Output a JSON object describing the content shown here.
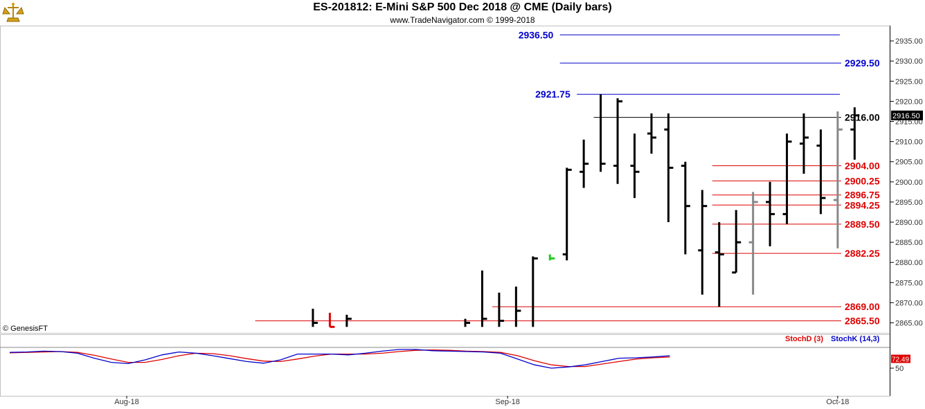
{
  "header": {
    "title": "ES-201812:  E-Mini S&P 500 Dec 2018 @ CME  (Daily bars)",
    "subtitle": "www.TradeNavigator.com © 1999-2018"
  },
  "colors": {
    "bar": "#000000",
    "bar_gray": "#888888",
    "bar_green": "#22cc22",
    "bar_red": "#e00000",
    "level_blue": "#0000cc",
    "level_red": "#dd0000",
    "level_black": "#000000",
    "stoch_d": "#dd0000",
    "stoch_k": "#0000cc"
  },
  "chart_data": {
    "type": "bar",
    "subtype": "ohlc",
    "y_axis": {
      "range": [
        2861,
        2939
      ],
      "ticks": [
        2865.0,
        2870.0,
        2875.0,
        2880.0,
        2885.0,
        2890.0,
        2895.0,
        2900.0,
        2905.0,
        2910.0,
        2915.0,
        2920.0,
        2925.0,
        2930.0,
        2935.0
      ],
      "current_price_label": "2916.50"
    },
    "x_axis": {
      "labels": [
        {
          "text": "Aug-18",
          "bar": 0
        },
        {
          "text": "Sep-18",
          "bar": 22.5
        },
        {
          "text": "Oct-18",
          "bar": 42
        }
      ]
    },
    "bars": [
      {
        "i": 11,
        "h": 2868.5,
        "l": 2864,
        "c": 2865,
        "color": "black"
      },
      {
        "i": 12,
        "h": 2867.5,
        "l": 2864,
        "c": 2864,
        "color": "red"
      },
      {
        "i": 13,
        "h": 2867,
        "l": 2864,
        "c": 2866,
        "color": "black"
      },
      {
        "i": 20,
        "h": 2866,
        "l": 2864,
        "c": 2865,
        "color": "black"
      },
      {
        "i": 21,
        "h": 2878,
        "l": 2864,
        "c": 2866,
        "color": "black"
      },
      {
        "i": 22,
        "h": 2872.5,
        "l": 2864,
        "c": 2865.5,
        "color": "black"
      },
      {
        "i": 23,
        "h": 2874,
        "l": 2864,
        "c": 2868,
        "color": "black"
      },
      {
        "i": 24,
        "h": 2881.5,
        "l": 2864,
        "c": 2881,
        "color": "black"
      },
      {
        "i": 25,
        "h": 2882,
        "l": 2880.5,
        "c": 2881,
        "color": "green"
      },
      {
        "i": 26,
        "h": 2903.5,
        "l": 2880.5,
        "c": 2903,
        "o": 2882,
        "color": "black"
      },
      {
        "i": 27,
        "h": 2910.5,
        "l": 2898.5,
        "c": 2904.5,
        "o": 2902.5,
        "color": "black"
      },
      {
        "i": 28,
        "h": 2921.75,
        "l": 2902.5,
        "c": 2904.5,
        "color": "black"
      },
      {
        "i": 29,
        "h": 2920.75,
        "l": 2899.5,
        "c": 2920,
        "o": 2904,
        "color": "black"
      },
      {
        "i": 30,
        "h": 2912,
        "l": 2896,
        "c": 2902.5,
        "o": 2904,
        "color": "black"
      },
      {
        "i": 31,
        "h": 2917,
        "l": 2907,
        "c": 2911,
        "o": 2912,
        "color": "black"
      },
      {
        "i": 32,
        "h": 2917,
        "l": 2890,
        "c": 2903.5,
        "o": 2913,
        "color": "black"
      },
      {
        "i": 33,
        "h": 2905,
        "l": 2882,
        "c": 2894,
        "o": 2904,
        "color": "black"
      },
      {
        "i": 34,
        "h": 2898,
        "l": 2872,
        "c": 2894,
        "o": 2883,
        "color": "black"
      },
      {
        "i": 35,
        "h": 2890,
        "l": 2869,
        "c": 2882,
        "o": 2882.5,
        "color": "black"
      },
      {
        "i": 36,
        "h": 2893,
        "l": 2877.5,
        "c": 2885,
        "o": 2877.5,
        "color": "black"
      },
      {
        "i": 37,
        "h": 2897.5,
        "l": 2872,
        "c": 2895,
        "o": 2885,
        "color": "gray"
      },
      {
        "i": 38,
        "h": 2900,
        "l": 2884,
        "c": 2892,
        "o": 2895,
        "color": "black"
      },
      {
        "i": 39,
        "h": 2912,
        "l": 2889.5,
        "c": 2910,
        "o": 2892,
        "color": "black"
      },
      {
        "i": 40,
        "h": 2917,
        "l": 2902,
        "c": 2911,
        "o": 2909.5,
        "color": "black"
      },
      {
        "i": 41,
        "h": 2913,
        "l": 2892,
        "c": 2896,
        "o": 2909,
        "color": "black"
      },
      {
        "i": 42,
        "h": 2917.5,
        "l": 2883.5,
        "c": 2913,
        "o": 2895.5,
        "color": "gray"
      },
      {
        "i": 43,
        "h": 2918.5,
        "l": 2905.5,
        "c": 2916.5,
        "o": 2913,
        "color": "black"
      }
    ],
    "levels": [
      {
        "value": 2936.5,
        "label": "2936.50",
        "color": "blue",
        "from_bar": 26,
        "to_bar": 49,
        "label_pos": "left"
      },
      {
        "value": 2929.5,
        "label": "2929.50",
        "color": "blue",
        "from_bar": 26,
        "to_bar": 49,
        "label_pos": "right"
      },
      {
        "value": 2921.75,
        "label": "2921.75",
        "color": "blue",
        "from_bar": 27,
        "to_bar": 49,
        "label_pos": "left"
      },
      {
        "value": 2916.0,
        "label": "2916.00",
        "color": "black",
        "from_bar": 28,
        "to_bar": 44,
        "label_pos": "right"
      },
      {
        "value": 2904.0,
        "label": "2904.00",
        "color": "red",
        "from_bar": 35,
        "to_bar": 44,
        "label_pos": "right"
      },
      {
        "value": 2900.25,
        "label": "2900.25",
        "color": "red",
        "from_bar": 35,
        "to_bar": 44,
        "label_pos": "right"
      },
      {
        "value": 2896.75,
        "label": "2896.75",
        "color": "red",
        "from_bar": 35,
        "to_bar": 44,
        "label_pos": "right"
      },
      {
        "value": 2894.25,
        "label": "2894.25",
        "color": "red",
        "from_bar": 35,
        "to_bar": 44,
        "label_pos": "right"
      },
      {
        "value": 2889.5,
        "label": "2889.50",
        "color": "red",
        "from_bar": 35,
        "to_bar": 44,
        "label_pos": "right"
      },
      {
        "value": 2882.25,
        "label": "2882.25",
        "color": "red",
        "from_bar": 35,
        "to_bar": 44,
        "label_pos": "right"
      },
      {
        "value": 2869.0,
        "label": "2869.00",
        "color": "red",
        "from_bar": 22,
        "to_bar": 49,
        "label_pos": "right"
      },
      {
        "value": 2865.5,
        "label": "2865.50",
        "color": "red",
        "from_bar": 8,
        "to_bar": 46,
        "label_pos": "right"
      }
    ],
    "indicator": {
      "legend": [
        {
          "text": "StochD (3)",
          "color": "red"
        },
        {
          "text": "StochK (14,3)",
          "color": "blue"
        }
      ],
      "range": [
        0,
        100
      ],
      "ticks": [
        50
      ],
      "current_label": "72.49",
      "stoch_k": [
        88,
        89,
        91,
        90,
        86,
        74,
        64,
        61,
        70,
        82,
        89,
        86,
        80,
        73,
        66,
        62,
        70,
        84,
        84,
        84,
        82,
        86,
        91,
        95,
        95,
        92,
        91,
        90,
        89,
        86,
        72,
        58,
        50,
        53,
        58,
        66,
        74,
        75,
        77,
        80
      ],
      "stoch_d": [
        87,
        88,
        89,
        90,
        88,
        81,
        72,
        64,
        64,
        71,
        80,
        86,
        85,
        80,
        73,
        67,
        66,
        72,
        79,
        84,
        84,
        84,
        86,
        90,
        93,
        94,
        93,
        91,
        90,
        88,
        80,
        68,
        58,
        54,
        54,
        60,
        66,
        72,
        75,
        77
      ]
    },
    "watermark": "© GenesisFT"
  }
}
